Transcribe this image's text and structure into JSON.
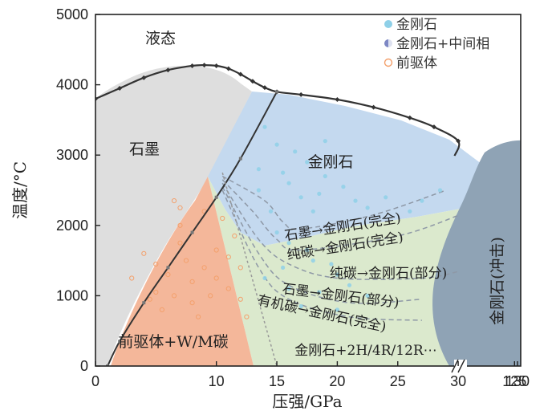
{
  "chart_data": {
    "type": "area",
    "title": "",
    "xlabel": "压强/GPa",
    "ylabel": "温度/°C",
    "xlim": [
      0,
      130
    ],
    "ylim": [
      0,
      5000
    ],
    "x_axis_break": "30 → 125",
    "xticks": [
      "0",
      "10",
      "15",
      "20",
      "25",
      "30",
      "125",
      "130"
    ],
    "yticks": [
      "0",
      "1000",
      "2000",
      "3000",
      "4000",
      "5000"
    ],
    "colors": {
      "liquid": "#ffffff",
      "graphite": "#dedede",
      "diamond": "#c4d9ef",
      "precursor": "#f4b79a",
      "mixed": "#dbe9cd",
      "shock": "#8fa3b5",
      "melt_line": "#333333",
      "dashed": "#8e98a6",
      "diamond_point": "#8fd0e8",
      "precursor_point": "#f3a06c"
    },
    "regions": {
      "liquid": "液态",
      "graphite": "石墨",
      "diamond": "金刚石",
      "precursor": "前驱体+W/M碳",
      "mixed": "金刚石+2H/4R/12R⋯",
      "shock": "金刚石(冲击)"
    },
    "legend": {
      "position": "top-right",
      "entries": [
        "金刚石",
        "金刚石+中间相",
        "前驱体"
      ]
    },
    "melting_curve": [
      {
        "x": 0,
        "y": 3800
      },
      {
        "x": 2,
        "y": 3950
      },
      {
        "x": 4,
        "y": 4100
      },
      {
        "x": 6,
        "y": 4210
      },
      {
        "x": 8,
        "y": 4270
      },
      {
        "x": 9,
        "y": 4280
      },
      {
        "x": 10,
        "y": 4270
      },
      {
        "x": 11,
        "y": 4230
      },
      {
        "x": 12,
        "y": 4150
      },
      {
        "x": 13,
        "y": 4050
      },
      {
        "x": 14,
        "y": 3960
      },
      {
        "x": 15,
        "y": 3900
      },
      {
        "x": 17,
        "y": 3860
      },
      {
        "x": 20,
        "y": 3790
      },
      {
        "x": 23,
        "y": 3680
      },
      {
        "x": 26,
        "y": 3530
      },
      {
        "x": 28,
        "y": 3400
      },
      {
        "x": 30,
        "y": 3200
      },
      {
        "x": 125,
        "y": 2900
      }
    ],
    "graphite_diamond_boundary": [
      {
        "x": 1,
        "y": 0
      },
      {
        "x": 2,
        "y": 350
      },
      {
        "x": 4,
        "y": 900
      },
      {
        "x": 6,
        "y": 1400
      },
      {
        "x": 8,
        "y": 1900
      },
      {
        "x": 10,
        "y": 2400
      },
      {
        "x": 12,
        "y": 2950
      },
      {
        "x": 15,
        "y": 3900
      }
    ],
    "transition_lines": [
      {
        "label": "石墨→金刚石(完全)",
        "x": [
          10.5,
          14,
          15.5,
          17,
          23,
          29
        ],
        "y": [
          2700,
          2350,
          2050,
          1950,
          2150,
          2500
        ]
      },
      {
        "label": "纯碳→金刚石(完全)",
        "x": [
          10.5,
          13,
          15,
          17,
          25,
          33
        ],
        "y": [
          2650,
          2200,
          1800,
          1650,
          1850,
          2150
        ]
      },
      {
        "label": "纯碳→金刚石(部分)",
        "x": [
          10.5,
          13.5,
          16,
          20,
          27,
          33
        ],
        "y": [
          2600,
          1800,
          1450,
          1250,
          1250,
          1350
        ]
      },
      {
        "label": "石墨→金刚石(部分)",
        "x": [
          10.5,
          13.5,
          16,
          21,
          27
        ],
        "y": [
          2550,
          1600,
          1150,
          900,
          950
        ]
      },
      {
        "label": "有机碳→金刚石(完全)",
        "x": [
          10.5,
          13.5,
          16,
          21,
          27
        ],
        "y": [
          2500,
          1400,
          950,
          700,
          650
        ]
      }
    ],
    "diamond_points": [
      {
        "x": 14,
        "y": 3400
      },
      {
        "x": 15,
        "y": 3150
      },
      {
        "x": 16.5,
        "y": 3050
      },
      {
        "x": 17.5,
        "y": 2900
      },
      {
        "x": 15.5,
        "y": 2750
      },
      {
        "x": 16,
        "y": 2600
      },
      {
        "x": 17,
        "y": 2400
      },
      {
        "x": 18.5,
        "y": 2450
      },
      {
        "x": 19,
        "y": 2700
      },
      {
        "x": 20.5,
        "y": 2550
      },
      {
        "x": 21.5,
        "y": 2350
      },
      {
        "x": 22.5,
        "y": 2250
      },
      {
        "x": 24,
        "y": 2400
      },
      {
        "x": 26,
        "y": 2200
      },
      {
        "x": 27,
        "y": 2350
      },
      {
        "x": 28.5,
        "y": 2500
      },
      {
        "x": 14.5,
        "y": 2200
      },
      {
        "x": 15,
        "y": 1900
      },
      {
        "x": 16,
        "y": 1750
      },
      {
        "x": 17.5,
        "y": 1650
      },
      {
        "x": 18,
        "y": 1500
      },
      {
        "x": 19.5,
        "y": 1450
      },
      {
        "x": 20,
        "y": 1300
      },
      {
        "x": 21,
        "y": 1150
      },
      {
        "x": 22.5,
        "y": 1000
      },
      {
        "x": 15.5,
        "y": 1400
      },
      {
        "x": 14,
        "y": 1250
      },
      {
        "x": 16,
        "y": 1100
      },
      {
        "x": 18.5,
        "y": 1050
      },
      {
        "x": 17,
        "y": 850
      },
      {
        "x": 20,
        "y": 800
      },
      {
        "x": 19,
        "y": 3200
      },
      {
        "x": 18,
        "y": 2200
      },
      {
        "x": 13.5,
        "y": 2800
      },
      {
        "x": 13.5,
        "y": 2500
      }
    ],
    "precursor_points": [
      {
        "x": 3,
        "y": 1250
      },
      {
        "x": 4,
        "y": 1600
      },
      {
        "x": 5,
        "y": 1450
      },
      {
        "x": 5,
        "y": 1050
      },
      {
        "x": 6,
        "y": 1300
      },
      {
        "x": 6.5,
        "y": 1000
      },
      {
        "x": 7,
        "y": 1750
      },
      {
        "x": 7.5,
        "y": 1500
      },
      {
        "x": 8,
        "y": 1200
      },
      {
        "x": 8,
        "y": 900
      },
      {
        "x": 9,
        "y": 1400
      },
      {
        "x": 9.5,
        "y": 1000
      },
      {
        "x": 10,
        "y": 1650
      },
      {
        "x": 10,
        "y": 1250
      },
      {
        "x": 11,
        "y": 1550
      },
      {
        "x": 11,
        "y": 1100
      },
      {
        "x": 12,
        "y": 1400
      },
      {
        "x": 12,
        "y": 950
      },
      {
        "x": 12.5,
        "y": 700
      },
      {
        "x": 8.5,
        "y": 700
      },
      {
        "x": 5.5,
        "y": 800
      },
      {
        "x": 4.5,
        "y": 950
      },
      {
        "x": 7,
        "y": 2000
      },
      {
        "x": 6.5,
        "y": 2350
      },
      {
        "x": 7,
        "y": 2250
      },
      {
        "x": 9,
        "y": 2200
      },
      {
        "x": 10.5,
        "y": 2100
      },
      {
        "x": 11.5,
        "y": 1850
      }
    ]
  }
}
